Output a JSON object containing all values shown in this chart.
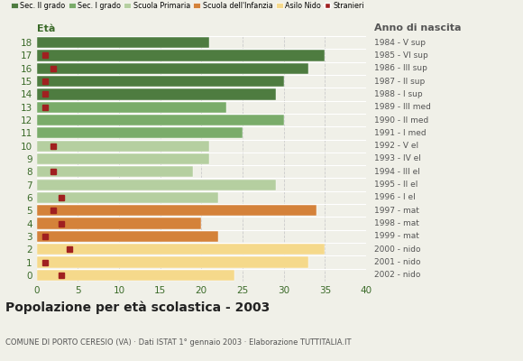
{
  "ages": [
    18,
    17,
    16,
    15,
    14,
    13,
    12,
    11,
    10,
    9,
    8,
    7,
    6,
    5,
    4,
    3,
    2,
    1,
    0
  ],
  "bar_values": [
    21,
    35,
    33,
    30,
    29,
    23,
    30,
    25,
    21,
    21,
    19,
    29,
    22,
    34,
    20,
    22,
    35,
    33,
    24
  ],
  "stranieri": [
    0,
    1,
    2,
    1,
    1,
    1,
    0,
    0,
    2,
    0,
    2,
    0,
    3,
    2,
    3,
    1,
    4,
    1,
    3
  ],
  "bar_colors": [
    "#4e7c40",
    "#4e7c40",
    "#4e7c40",
    "#4e7c40",
    "#4e7c40",
    "#7aac6a",
    "#7aac6a",
    "#7aac6a",
    "#b5cfa0",
    "#b5cfa0",
    "#b5cfa0",
    "#b5cfa0",
    "#b5cfa0",
    "#d4823a",
    "#d4823a",
    "#d4823a",
    "#f5d98b",
    "#f5d98b",
    "#f5d98b"
  ],
  "right_labels": [
    "1984 - V sup",
    "1985 - VI sup",
    "1986 - III sup",
    "1987 - II sup",
    "1988 - I sup",
    "1989 - III med",
    "1990 - II med",
    "1991 - I med",
    "1992 - V el",
    "1993 - IV el",
    "1994 - III el",
    "1995 - II el",
    "1996 - I el",
    "1997 - mat",
    "1998 - mat",
    "1999 - mat",
    "2000 - nido",
    "2001 - nido",
    "2002 - nido"
  ],
  "legend_labels": [
    "Sec. II grado",
    "Sec. I grado",
    "Scuola Primaria",
    "Scuola dell'Infanzia",
    "Asilo Nido",
    "Stranieri"
  ],
  "legend_colors": [
    "#4e7c40",
    "#7aac6a",
    "#b5cfa0",
    "#d4823a",
    "#f5d98b",
    "#a02020"
  ],
  "title": "Popolazione per età scolastica - 2003",
  "subtitle": "COMUNE DI PORTO CERESIO (VA) · Dati ISTAT 1° gennaio 2003 · Elaborazione TUTTITALIA.IT",
  "xlabel_left": "Età",
  "xlabel_right": "Anno di nascita",
  "xlim": [
    0,
    40
  ],
  "xticks": [
    0,
    5,
    10,
    15,
    20,
    25,
    30,
    35,
    40
  ],
  "stranieri_color": "#a02020",
  "stranieri_size": 4,
  "grid_color": "#cccccc",
  "bg_color": "#f0f0e8"
}
